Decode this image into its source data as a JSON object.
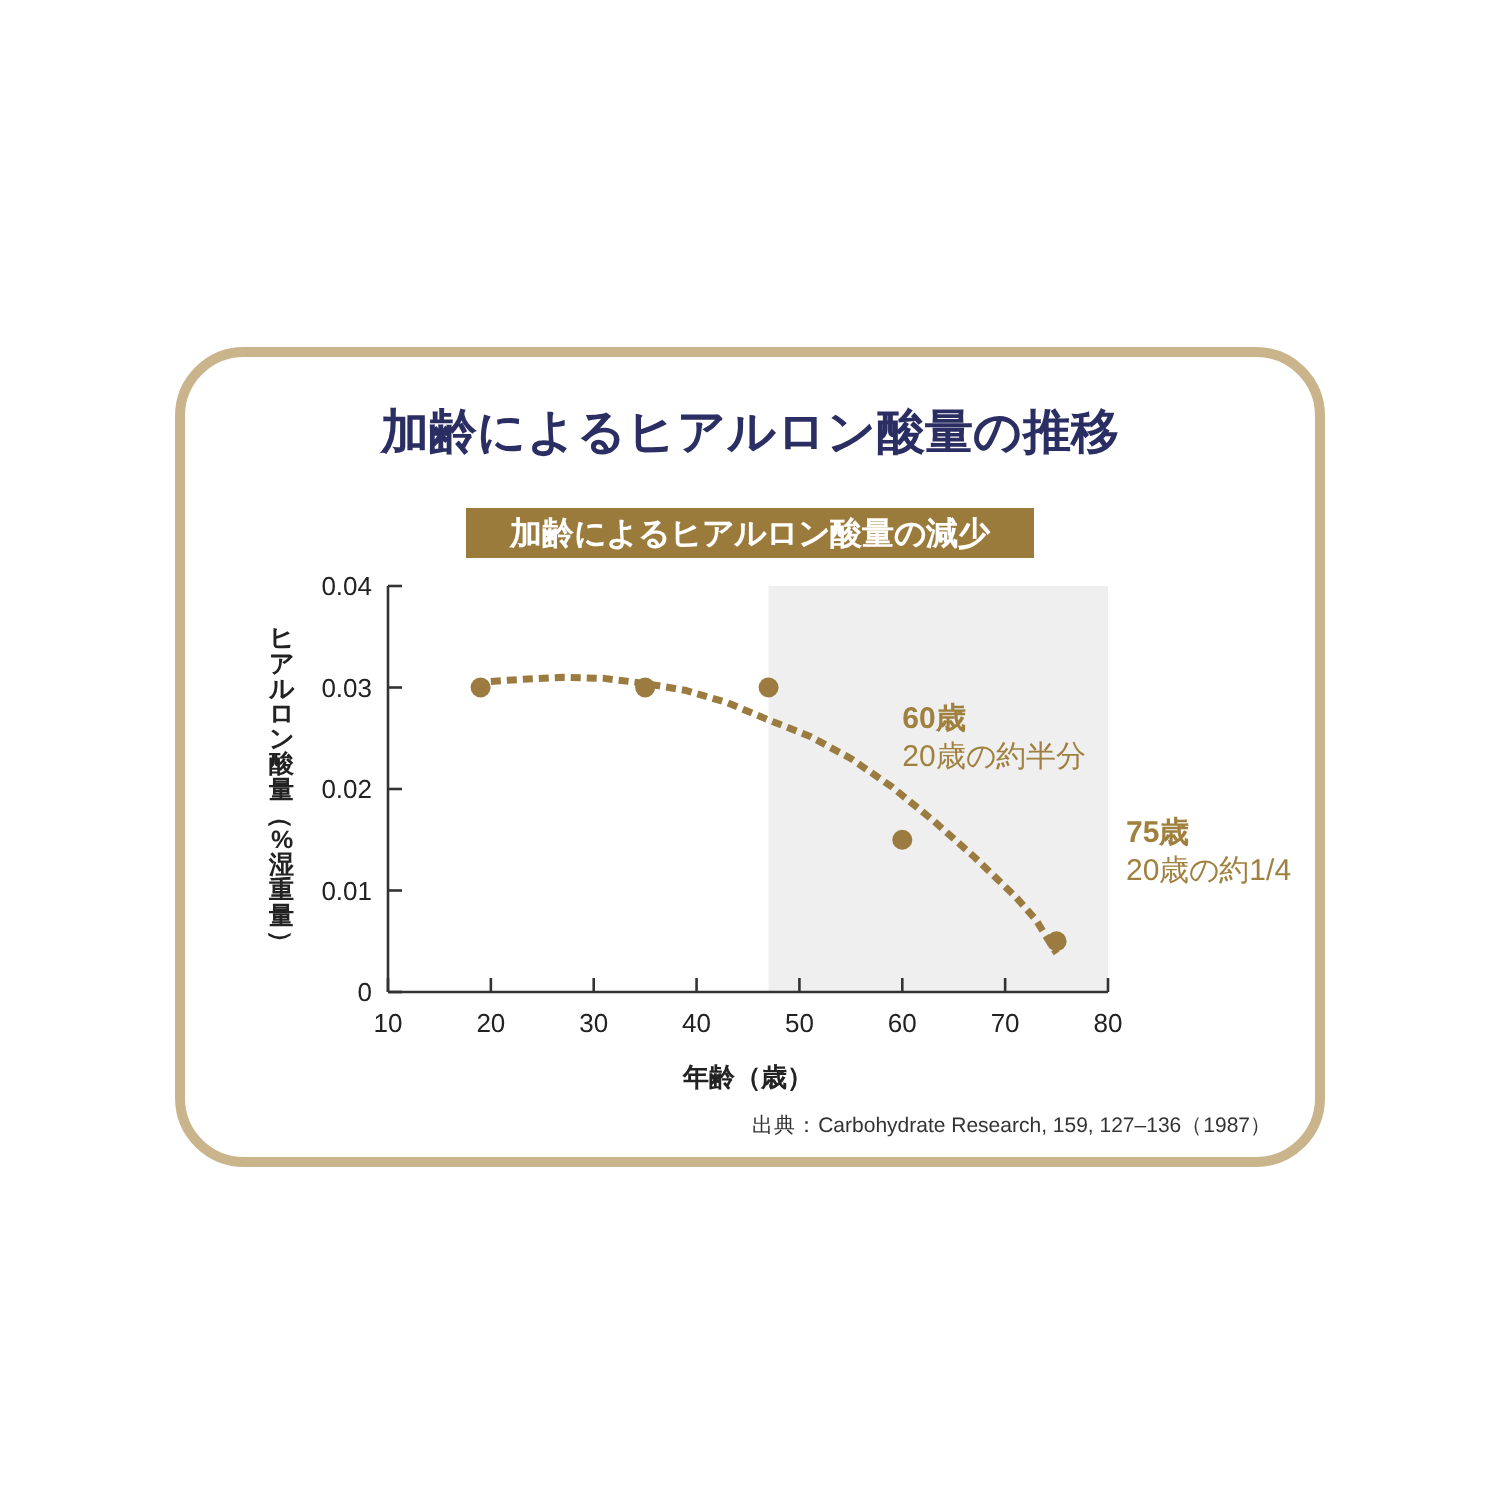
{
  "chart_data": {
    "type": "scatter",
    "title": "加齢によるヒアルロン酸量の推移",
    "subtitle": "加齢によるヒアルロン酸量の減少",
    "xlabel": "年齢（歳）",
    "ylabel": "ヒアルロン酸量（%湿重量）",
    "xlim": [
      10,
      80
    ],
    "ylim": [
      0,
      0.04
    ],
    "xticks": [
      10,
      20,
      30,
      40,
      50,
      60,
      70,
      80
    ],
    "yticks": [
      0,
      0.01,
      0.02,
      0.03,
      0.04
    ],
    "series": [
      {
        "color": "#9b7b3f",
        "marker": "circle",
        "x": [
          19,
          35,
          47,
          60,
          75
        ],
        "values": [
          0.03,
          0.03,
          0.03,
          0.015,
          0.005
        ]
      },
      {
        "type": "line",
        "color": "#9b7b3f",
        "line_style": "dashed",
        "x": [
          20,
          23,
          27,
          31,
          35,
          39,
          43,
          47,
          51,
          55,
          59,
          63,
          67,
          71,
          73,
          75
        ],
        "values": [
          0.0306,
          0.0308,
          0.031,
          0.0309,
          0.0304,
          0.0297,
          0.0285,
          0.0268,
          0.0252,
          0.023,
          0.0202,
          0.0169,
          0.0133,
          0.0094,
          0.0071,
          0.0038
        ]
      }
    ],
    "bands": [
      {
        "axis": "x",
        "from": 47,
        "to": 80,
        "color": "#efefef"
      }
    ],
    "annotations": [
      {
        "text": "60歳\n20歳の約半分",
        "x": 60,
        "y": 0.015
      },
      "75歳\n20歳の約1/4",
      "出典：Carbohydrate Research, 159, 127–136（1987）"
    ]
  }
}
